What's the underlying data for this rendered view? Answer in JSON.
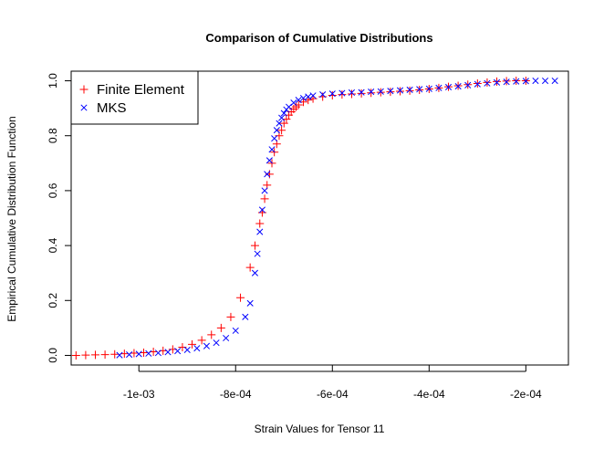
{
  "chart_data": {
    "type": "scatter",
    "title": "Comparison of Cumulative Distributions",
    "xlabel": "Strain Values for Tensor 11",
    "ylabel": "Empirical Cumulative Distribution Function",
    "xlim": [
      -0.00114,
      -0.000112
    ],
    "ylim": [
      -0.035,
      1.035
    ],
    "x_ticks": [
      {
        "value": -0.001,
        "label": "-1e-03"
      },
      {
        "value": -0.0008,
        "label": "-8e-04"
      },
      {
        "value": -0.0006,
        "label": "-6e-04"
      },
      {
        "value": -0.0004,
        "label": "-4e-04"
      },
      {
        "value": -0.0002,
        "label": "-2e-04"
      }
    ],
    "y_ticks": [
      {
        "value": 0.0,
        "label": "0.0"
      },
      {
        "value": 0.2,
        "label": "0.2"
      },
      {
        "value": 0.4,
        "label": "0.4"
      },
      {
        "value": 0.6,
        "label": "0.6"
      },
      {
        "value": 0.8,
        "label": "0.8"
      },
      {
        "value": 1.0,
        "label": "1.0"
      }
    ],
    "grid": false,
    "legend_position": "top-left",
    "series": [
      {
        "name": "Finite Element",
        "marker": "plus",
        "color": "#ff0000",
        "x": [
          -0.00113,
          -0.00111,
          -0.00109,
          -0.00107,
          -0.00105,
          -0.00103,
          -0.00101,
          -0.00099,
          -0.00097,
          -0.00095,
          -0.00093,
          -0.00091,
          -0.00089,
          -0.00087,
          -0.00085,
          -0.00083,
          -0.00081,
          -0.00079,
          -0.00077,
          -0.00076,
          -0.00075,
          -0.000745,
          -0.00074,
          -0.000735,
          -0.00073,
          -0.000725,
          -0.00072,
          -0.000715,
          -0.00071,
          -0.000705,
          -0.0007,
          -0.000695,
          -0.00069,
          -0.000685,
          -0.00068,
          -0.000675,
          -0.00067,
          -0.00066,
          -0.00065,
          -0.00064,
          -0.00062,
          -0.0006,
          -0.00058,
          -0.00056,
          -0.00054,
          -0.00052,
          -0.0005,
          -0.00048,
          -0.00046,
          -0.00044,
          -0.00042,
          -0.0004,
          -0.00038,
          -0.00036,
          -0.00034,
          -0.00032,
          -0.0003,
          -0.00028,
          -0.00026,
          -0.00024,
          -0.00022,
          -0.0002
        ],
        "y": [
          0.0,
          0.001,
          0.002,
          0.003,
          0.004,
          0.006,
          0.008,
          0.01,
          0.013,
          0.017,
          0.022,
          0.03,
          0.04,
          0.055,
          0.075,
          0.1,
          0.14,
          0.21,
          0.32,
          0.4,
          0.48,
          0.52,
          0.57,
          0.62,
          0.66,
          0.7,
          0.74,
          0.77,
          0.8,
          0.82,
          0.845,
          0.86,
          0.875,
          0.887,
          0.897,
          0.905,
          0.912,
          0.923,
          0.93,
          0.935,
          0.942,
          0.947,
          0.95,
          0.952,
          0.954,
          0.956,
          0.958,
          0.96,
          0.962,
          0.964,
          0.967,
          0.97,
          0.974,
          0.978,
          0.982,
          0.986,
          0.99,
          0.994,
          0.997,
          0.999,
          1.0,
          1.0
        ]
      },
      {
        "name": "MKS",
        "marker": "cross",
        "color": "#0000ff",
        "x": [
          -0.00104,
          -0.00102,
          -0.001,
          -0.00098,
          -0.00096,
          -0.00094,
          -0.00092,
          -0.0009,
          -0.00088,
          -0.00086,
          -0.00084,
          -0.00082,
          -0.0008,
          -0.00078,
          -0.00077,
          -0.00076,
          -0.000755,
          -0.00075,
          -0.000745,
          -0.00074,
          -0.000735,
          -0.00073,
          -0.000725,
          -0.00072,
          -0.000715,
          -0.00071,
          -0.000705,
          -0.0007,
          -0.000695,
          -0.00069,
          -0.00068,
          -0.00067,
          -0.00066,
          -0.00065,
          -0.00064,
          -0.00062,
          -0.0006,
          -0.00058,
          -0.00056,
          -0.00054,
          -0.00052,
          -0.0005,
          -0.00048,
          -0.00046,
          -0.00044,
          -0.00042,
          -0.0004,
          -0.00038,
          -0.00036,
          -0.00034,
          -0.00032,
          -0.0003,
          -0.00028,
          -0.00026,
          -0.00024,
          -0.00022,
          -0.0002,
          -0.00018,
          -0.00016,
          -0.00014
        ],
        "y": [
          0.001,
          0.003,
          0.005,
          0.007,
          0.009,
          0.012,
          0.016,
          0.02,
          0.026,
          0.034,
          0.046,
          0.063,
          0.09,
          0.14,
          0.19,
          0.3,
          0.37,
          0.45,
          0.53,
          0.6,
          0.66,
          0.71,
          0.75,
          0.79,
          0.82,
          0.845,
          0.865,
          0.882,
          0.895,
          0.905,
          0.92,
          0.93,
          0.937,
          0.942,
          0.946,
          0.95,
          0.953,
          0.955,
          0.957,
          0.958,
          0.96,
          0.961,
          0.963,
          0.965,
          0.967,
          0.969,
          0.971,
          0.974,
          0.977,
          0.98,
          0.984,
          0.988,
          0.991,
          0.994,
          0.996,
          0.998,
          0.999,
          1.0,
          1.0,
          1.0
        ]
      }
    ]
  }
}
